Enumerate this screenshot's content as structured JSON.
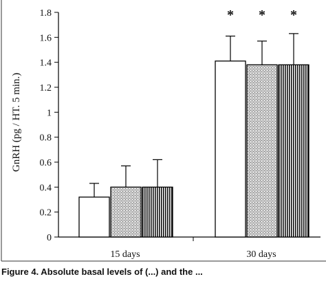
{
  "chart_data": {
    "type": "bar",
    "ylabel": "GnRH (pg / HT. 5 min.)",
    "ylim": [
      0,
      1.8
    ],
    "yticks": [
      "0",
      "0.2",
      "0.4",
      "0.6",
      "0.8",
      "1",
      "1.2",
      "1.4",
      "1.6",
      "1.8"
    ],
    "categories": [
      "15 days",
      "30 days"
    ],
    "series": [
      {
        "values": [
          0.32,
          1.41
        ],
        "errors": [
          0.11,
          0.2
        ],
        "pattern": "white"
      },
      {
        "values": [
          0.4,
          1.38
        ],
        "errors": [
          0.17,
          0.19
        ],
        "pattern": "stipple"
      },
      {
        "values": [
          0.4,
          1.38
        ],
        "errors": [
          0.22,
          0.25
        ],
        "pattern": "vertical-stripes"
      }
    ],
    "annotations": [
      {
        "text": "*",
        "category": "30 days",
        "series": 0
      },
      {
        "text": "*",
        "category": "30 days",
        "series": 1
      },
      {
        "text": "*",
        "category": "30 days",
        "series": 2
      }
    ],
    "grid": false,
    "legend": "none"
  },
  "caption": "Figure 4.   Absolute basal levels of (...) and the ..."
}
